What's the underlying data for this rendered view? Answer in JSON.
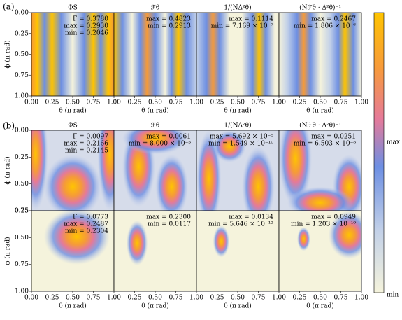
{
  "figure": {
    "panel_labels": [
      "(a)",
      "(b)"
    ],
    "titles": [
      "ΦS",
      "ℱθ",
      "1/(NΔ²θ)",
      "(Nℱθ · Δ²θ)⁻¹"
    ],
    "x_label": "θ (π rad)",
    "y_label": "ϕ (π rad)",
    "x_ticks": [
      "0.00",
      "0.25",
      "0.50",
      "0.75",
      "1.00"
    ],
    "y_ticks": [
      "0.00",
      "0.25",
      "0.50",
      "0.75",
      "1.00"
    ],
    "colorbar": {
      "max": "max",
      "min": "min"
    },
    "rows": [
      {
        "annotations": [
          [
            "Γ = 0.3780",
            "max = 0.2930",
            "min = 0.2046"
          ],
          [
            "max = 0.4823",
            "min = 0.2913"
          ],
          [
            "max = 0.1114",
            "min = 7.169 × 10⁻⁷"
          ],
          [
            "max = 0.2467",
            "min = 1.806 × 10⁻⁶"
          ]
        ]
      },
      {
        "annotations": [
          [
            "Γ = 0.0097",
            "max = 0.2166",
            "min = 0.2145"
          ],
          [
            "max = 0.0061",
            "min = 8.000 × 10⁻⁵"
          ],
          [
            "max = 5.692 × 10⁻⁵",
            "min = 1.549 × 10⁻¹⁰"
          ],
          [
            "max = 0.0251",
            "min = 6.503 × 10⁻⁸"
          ]
        ]
      },
      {
        "annotations": [
          [
            "Γ = 0.0773",
            "max = 0.2487",
            "min = 0.2304"
          ],
          [
            "max = 0.2300",
            "min = 0.0117"
          ],
          [
            "max = 0.0134",
            "min = 5.646 × 10⁻¹²"
          ],
          [
            "max = 0.0949",
            "min = 1.203 × 10⁻¹⁰"
          ]
        ]
      }
    ]
  }
}
